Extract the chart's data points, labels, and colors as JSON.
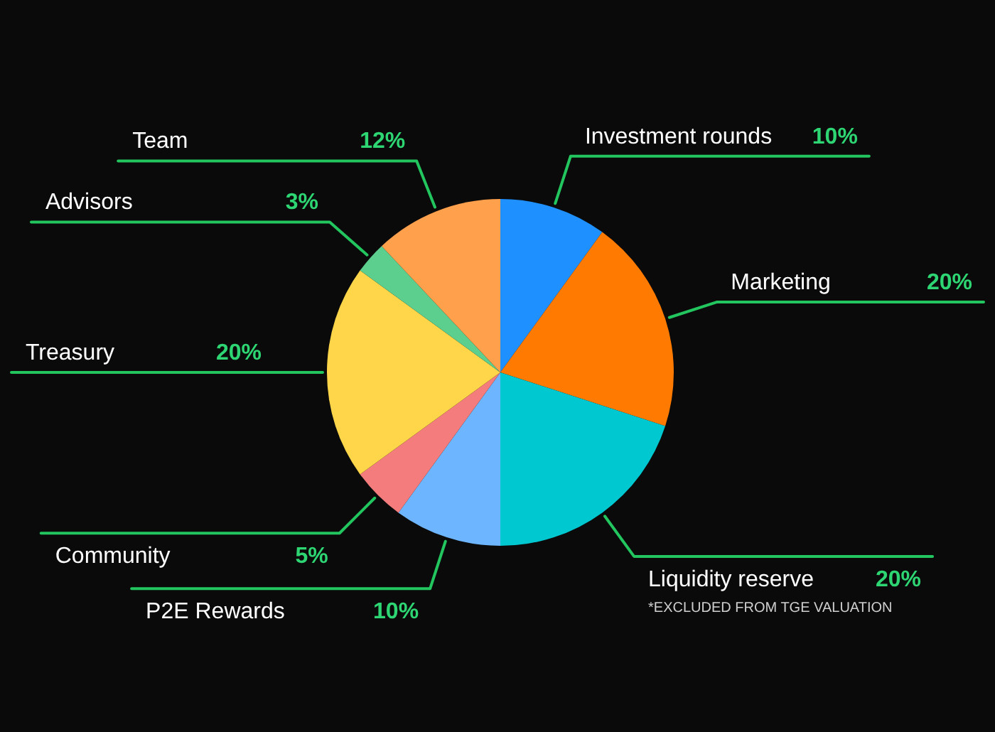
{
  "chart_data": {
    "type": "pie",
    "categories": [
      "Investment rounds",
      "Marketing",
      "Liquidity reserve",
      "P2E Rewards",
      "Community",
      "Treasury",
      "Advisors",
      "Team"
    ],
    "values": [
      10,
      20,
      20,
      10,
      5,
      20,
      3,
      12
    ],
    "colors": [
      "#1e90ff",
      "#ff7a00",
      "#00c8d0",
      "#6db6ff",
      "#f47c7c",
      "#ffd54a",
      "#5ccf8f",
      "#ffa04d"
    ],
    "value_labels": [
      "10%",
      "20%",
      "20%",
      "10%",
      "5%",
      "20%",
      "3%",
      "12%"
    ],
    "annotations": [
      {
        "text": "*EXCLUDED FROM TGE VALUATION",
        "x": "Liquidity reserve"
      }
    ]
  }
}
